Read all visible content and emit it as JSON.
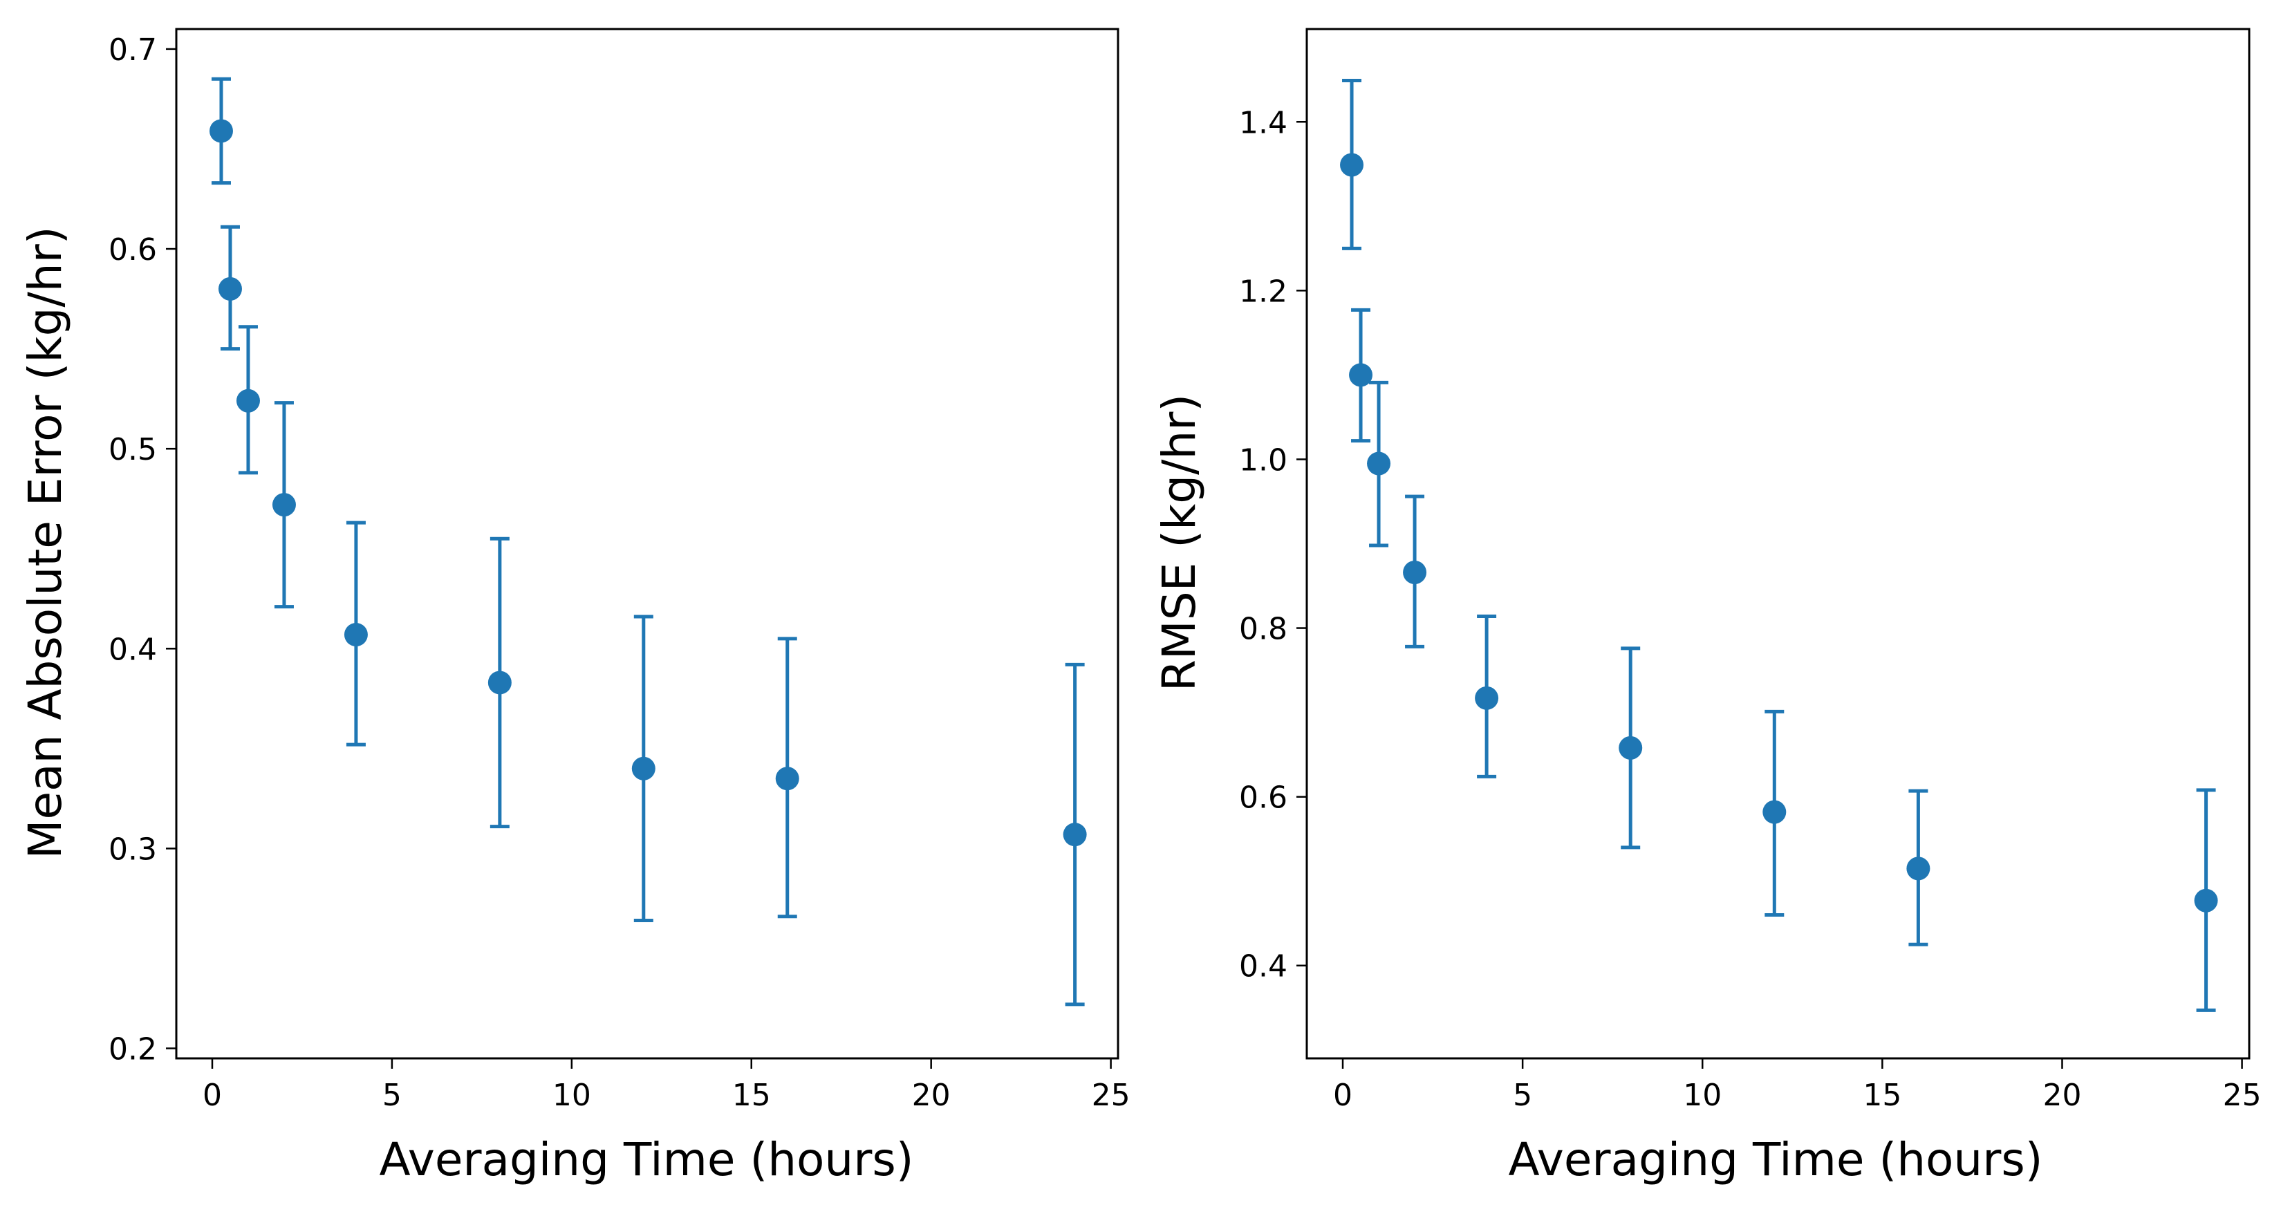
{
  "chart_data": [
    {
      "type": "scatter",
      "name": "mae",
      "xlabel": "Averaging Time (hours)",
      "ylabel": "Mean Absolute Error (kg/hr)",
      "xlim": [
        -1.0,
        25.2
      ],
      "ylim": [
        0.195,
        0.71
      ],
      "xticks": [
        0,
        5,
        10,
        15,
        20,
        25
      ],
      "yticks": [
        0.2,
        0.3,
        0.4,
        0.5,
        0.6,
        0.7
      ],
      "ytick_labels": [
        "0.2",
        "0.3",
        "0.4",
        "0.5",
        "0.6",
        "0.7"
      ],
      "color": "#1f77b4",
      "series": [
        {
          "name": "MAE",
          "x": [
            0.25,
            0.5,
            1,
            2,
            4,
            8,
            12,
            16,
            24
          ],
          "y": [
            0.659,
            0.58,
            0.524,
            0.472,
            0.407,
            0.383,
            0.34,
            0.335,
            0.307
          ],
          "err_low": [
            0.633,
            0.55,
            0.488,
            0.421,
            0.352,
            0.311,
            0.264,
            0.266,
            0.222
          ],
          "err_high": [
            0.685,
            0.611,
            0.561,
            0.523,
            0.463,
            0.455,
            0.416,
            0.405,
            0.392
          ]
        }
      ]
    },
    {
      "type": "scatter",
      "name": "rmse",
      "xlabel": "Averaging Time (hours)",
      "ylabel": "RMSE (kg/hr)",
      "xlim": [
        -1.0,
        25.2
      ],
      "ylim": [
        0.29,
        1.51
      ],
      "xticks": [
        0,
        5,
        10,
        15,
        20,
        25
      ],
      "yticks": [
        0.4,
        0.6,
        0.8,
        1.0,
        1.2,
        1.4
      ],
      "ytick_labels": [
        "0.4",
        "0.6",
        "0.8",
        "1.0",
        "1.2",
        "1.4"
      ],
      "color": "#1f77b4",
      "series": [
        {
          "name": "RMSE",
          "x": [
            0.25,
            0.5,
            1,
            2,
            4,
            8,
            12,
            16,
            24
          ],
          "y": [
            1.349,
            1.1,
            0.995,
            0.866,
            0.717,
            0.658,
            0.582,
            0.515,
            0.477
          ],
          "err_low": [
            1.25,
            1.022,
            0.898,
            0.778,
            0.624,
            0.54,
            0.46,
            0.425,
            0.347
          ],
          "err_high": [
            1.449,
            1.177,
            1.091,
            0.956,
            0.814,
            0.776,
            0.701,
            0.607,
            0.608
          ]
        }
      ]
    }
  ]
}
